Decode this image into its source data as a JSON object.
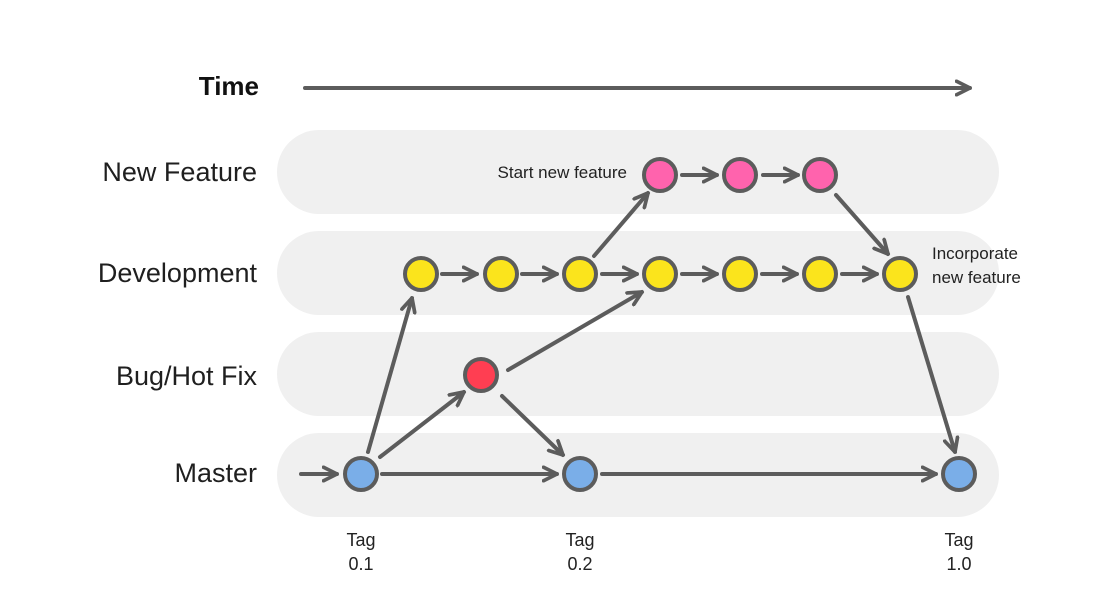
{
  "time": {
    "label": "Time"
  },
  "lanes": [
    {
      "id": "new-feature",
      "label": "New Feature"
    },
    {
      "id": "development",
      "label": "Development"
    },
    {
      "id": "bugfix",
      "label": "Bug/Hot Fix"
    },
    {
      "id": "master",
      "label": "Master"
    }
  ],
  "colors": {
    "lane_bg": "#f0f0f0",
    "stroke": "#5c5c5c",
    "master": "#7aaee8",
    "development": "#fbe41c",
    "new_feature": "#ff63ad",
    "bugfix": "#ff3e52"
  },
  "annotations": {
    "start_feature": "Start new feature",
    "incorporate_line1": "Incorporate",
    "incorporate_line2": "new feature"
  },
  "tags": [
    {
      "line1": "Tag",
      "line2": "0.1"
    },
    {
      "line1": "Tag",
      "line2": "0.2"
    },
    {
      "line1": "Tag",
      "line2": "1.0"
    }
  ]
}
